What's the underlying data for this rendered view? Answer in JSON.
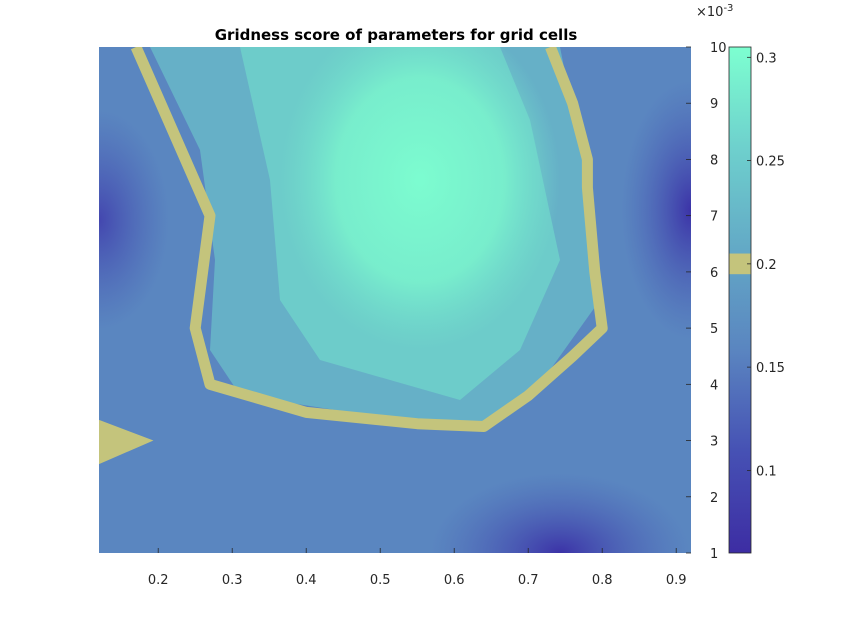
{
  "chart_data": {
    "type": "contourf",
    "title": "Gridness score of parameters for grid cells",
    "xlabel": "",
    "ylabel": "",
    "xlim": [
      0.12,
      0.92
    ],
    "ylim": [
      1,
      10
    ],
    "x_ticks": [
      0.2,
      0.3,
      0.4,
      0.5,
      0.6,
      0.7,
      0.8,
      0.9
    ],
    "x_tick_labels": [
      "0.2",
      "0.3",
      "0.4",
      "0.5",
      "0.6",
      "0.7",
      "0.8",
      "0.9"
    ],
    "y_ticks": [
      1,
      2,
      3,
      4,
      5,
      6,
      7,
      8,
      9,
      10
    ],
    "y_tick_labels": [
      "1",
      "2",
      "3",
      "4",
      "5",
      "6",
      "7",
      "8",
      "9",
      "10"
    ],
    "y_exponent_base": "×10",
    "y_exponent_power": "-3",
    "colorbar": {
      "clim": [
        0.06,
        0.305
      ],
      "ticks": [
        0.1,
        0.15,
        0.2,
        0.25,
        0.3
      ],
      "tick_labels": [
        "0.1",
        "0.15",
        "0.2",
        "0.25",
        "0.3"
      ],
      "colors": [
        "#3d2da3",
        "#4651b4",
        "#5a85c0",
        "#63a9c6",
        "#6ed0cd",
        "#7dffd0"
      ],
      "highlight_band": [
        0.195,
        0.205
      ],
      "highlight_color": "#c4c47c"
    },
    "peak": {
      "x": 0.57,
      "y": 7.0,
      "value": 0.3
    },
    "surface_samples": [
      {
        "x": 0.12,
        "y": 7.0,
        "value": 0.1
      },
      {
        "x": 0.12,
        "y": 3.0,
        "value": 0.2
      },
      {
        "x": 0.72,
        "y": 1.0,
        "value": 0.08
      },
      {
        "x": 0.92,
        "y": 7.0,
        "value": 0.08
      },
      {
        "x": 0.35,
        "y": 9.8,
        "value": 0.18
      }
    ],
    "highlight_contour": {
      "value": 0.2,
      "main_path": [
        {
          "x": 0.17,
          "y": 10.0
        },
        {
          "x": 0.22,
          "y": 8.5
        },
        {
          "x": 0.27,
          "y": 7.0
        },
        {
          "x": 0.26,
          "y": 6.0
        },
        {
          "x": 0.25,
          "y": 5.0
        },
        {
          "x": 0.27,
          "y": 4.0
        },
        {
          "x": 0.4,
          "y": 3.5
        },
        {
          "x": 0.55,
          "y": 3.3
        },
        {
          "x": 0.64,
          "y": 3.25
        },
        {
          "x": 0.7,
          "y": 3.8
        },
        {
          "x": 0.76,
          "y": 4.5
        },
        {
          "x": 0.8,
          "y": 5.0
        },
        {
          "x": 0.79,
          "y": 6.0
        },
        {
          "x": 0.78,
          "y": 7.5
        },
        {
          "x": 0.78,
          "y": 8.0
        },
        {
          "x": 0.76,
          "y": 9.0
        },
        {
          "x": 0.73,
          "y": 10.0
        }
      ],
      "island_path": [
        {
          "x": 0.12,
          "y": 3.35
        },
        {
          "x": 0.19,
          "y": 3.0
        },
        {
          "x": 0.12,
          "y": 2.6
        }
      ]
    }
  }
}
